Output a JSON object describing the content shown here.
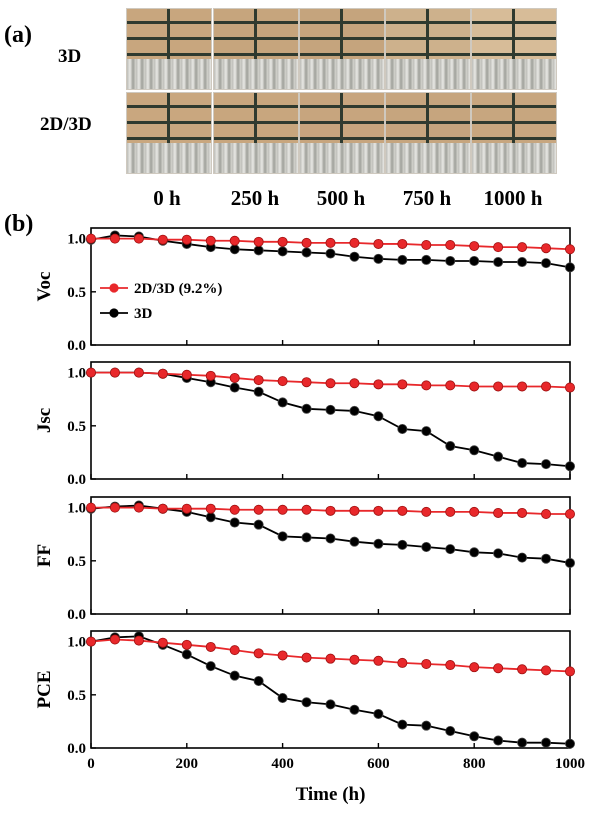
{
  "photos": {
    "panel_label": "(a)",
    "rows": [
      {
        "label": "3D",
        "tints": [
          "#c8a67e",
          "#c6a57d",
          "#c5a47d",
          "#cdb18c",
          "#d7bc98"
        ]
      },
      {
        "label": "2D/3D",
        "tints": [
          "#c9a77f",
          "#c8a67e",
          "#c7a57e",
          "#c6a57e",
          "#c7a67f"
        ]
      }
    ],
    "times": [
      "0 h",
      "250 h",
      "500 h",
      "750 h",
      "1000 h"
    ]
  },
  "chart_data": {
    "panel_label": "(b)",
    "type": "line",
    "xlabel": "Time (h)",
    "xlim": [
      0,
      1000
    ],
    "xticks": [
      "0",
      "200",
      "400",
      "600",
      "800",
      "1000"
    ],
    "ylim": [
      0,
      1.1
    ],
    "yticks": [
      "0.0",
      "0.5",
      "1.0"
    ],
    "x": [
      0,
      50,
      100,
      150,
      200,
      250,
      300,
      350,
      400,
      450,
      500,
      550,
      600,
      650,
      700,
      750,
      800,
      850,
      900,
      950,
      1000
    ],
    "legend": {
      "placement": "left",
      "entries": [
        "2D/3D (9.2%)",
        "3D"
      ]
    },
    "colors": {
      "2D/3D": "#e8282b",
      "3D": "#000000"
    },
    "panels": [
      {
        "ylabel": "Voc",
        "series": [
          {
            "name": "2D/3D (9.2%)",
            "values": [
              1.0,
              1.0,
              1.0,
              0.99,
              0.99,
              0.98,
              0.98,
              0.97,
              0.97,
              0.96,
              0.96,
              0.96,
              0.95,
              0.95,
              0.94,
              0.94,
              0.93,
              0.92,
              0.92,
              0.91,
              0.9
            ]
          },
          {
            "name": "3D",
            "values": [
              0.99,
              1.03,
              1.02,
              0.98,
              0.95,
              0.92,
              0.9,
              0.89,
              0.88,
              0.87,
              0.86,
              0.83,
              0.81,
              0.8,
              0.8,
              0.79,
              0.79,
              0.78,
              0.78,
              0.77,
              0.73
            ]
          }
        ]
      },
      {
        "ylabel": "Jsc",
        "series": [
          {
            "name": "2D/3D (9.2%)",
            "values": [
              1.0,
              1.0,
              1.0,
              0.99,
              0.98,
              0.97,
              0.95,
              0.93,
              0.92,
              0.91,
              0.9,
              0.9,
              0.89,
              0.89,
              0.88,
              0.88,
              0.87,
              0.87,
              0.87,
              0.87,
              0.86
            ]
          },
          {
            "name": "3D",
            "values": [
              1.0,
              1.0,
              1.0,
              0.99,
              0.95,
              0.91,
              0.86,
              0.82,
              0.72,
              0.66,
              0.65,
              0.64,
              0.59,
              0.47,
              0.45,
              0.31,
              0.27,
              0.21,
              0.15,
              0.14,
              0.12
            ]
          }
        ]
      },
      {
        "ylabel": "FF",
        "series": [
          {
            "name": "2D/3D (9.2%)",
            "values": [
              1.0,
              1.0,
              1.0,
              0.99,
              0.99,
              0.99,
              0.98,
              0.98,
              0.98,
              0.98,
              0.97,
              0.97,
              0.97,
              0.97,
              0.96,
              0.96,
              0.96,
              0.95,
              0.95,
              0.94,
              0.94
            ]
          },
          {
            "name": "3D",
            "values": [
              0.99,
              1.01,
              1.02,
              0.99,
              0.96,
              0.91,
              0.86,
              0.84,
              0.73,
              0.72,
              0.71,
              0.68,
              0.66,
              0.65,
              0.63,
              0.61,
              0.58,
              0.57,
              0.53,
              0.52,
              0.48
            ]
          }
        ]
      },
      {
        "ylabel": "PCE",
        "series": [
          {
            "name": "2D/3D (9.2%)",
            "values": [
              1.0,
              1.02,
              1.01,
              0.99,
              0.97,
              0.95,
              0.92,
              0.89,
              0.87,
              0.85,
              0.84,
              0.83,
              0.82,
              0.8,
              0.79,
              0.78,
              0.76,
              0.75,
              0.74,
              0.73,
              0.72
            ]
          },
          {
            "name": "3D",
            "values": [
              1.0,
              1.04,
              1.05,
              0.97,
              0.88,
              0.77,
              0.68,
              0.63,
              0.47,
              0.43,
              0.41,
              0.36,
              0.32,
              0.22,
              0.21,
              0.16,
              0.11,
              0.07,
              0.05,
              0.05,
              0.04
            ]
          }
        ]
      }
    ]
  }
}
